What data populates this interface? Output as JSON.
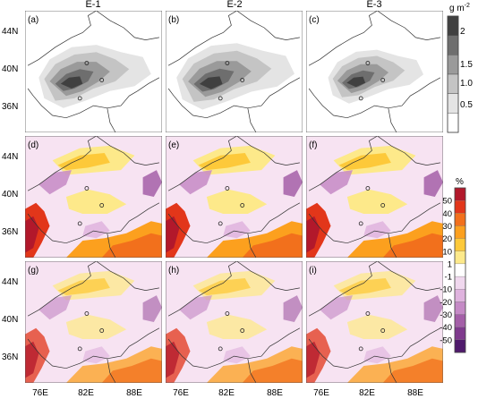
{
  "chart_data": {
    "type": "heatmap",
    "columns": [
      "E-1",
      "E-2",
      "E-3"
    ],
    "lat_ticks": [
      "44N",
      "40N",
      "36N"
    ],
    "lon_ticks": [
      "76E",
      "82E",
      "88E"
    ],
    "panels": [
      {
        "label": "(a)",
        "row": 0,
        "col": 0
      },
      {
        "label": "(b)",
        "row": 0,
        "col": 1
      },
      {
        "label": "(c)",
        "row": 0,
        "col": 2
      },
      {
        "label": "(d)",
        "row": 1,
        "col": 0
      },
      {
        "label": "(e)",
        "row": 1,
        "col": 1
      },
      {
        "label": "(f)",
        "row": 1,
        "col": 2
      },
      {
        "label": "(g)",
        "row": 2,
        "col": 0
      },
      {
        "label": "(h)",
        "row": 2,
        "col": 1
      },
      {
        "label": "(i)",
        "row": 2,
        "col": 2
      }
    ],
    "colorbar_top": {
      "unit": "g m",
      "unit_sup": "-2",
      "tick_labels": [
        "2",
        "1.5",
        "1.0",
        "0.5"
      ],
      "colors": [
        "#404040",
        "#6e6e6e",
        "#9a9a9a",
        "#c4c4c4",
        "#e4e4e4",
        "#ffffff"
      ]
    },
    "colorbar_bottom": {
      "unit": "%",
      "tick_labels": [
        "50",
        "40",
        "30",
        "20",
        "10",
        "1",
        "-1",
        "-10",
        "-20",
        "-30",
        "-40",
        "-50"
      ],
      "colors": [
        "#b2182b",
        "#e2361a",
        "#f2701c",
        "#fca01e",
        "#fdc93a",
        "#fde98a",
        "#ffffff",
        "#f0d8ee",
        "#dfb3de",
        "#c58ac6",
        "#a45fa8",
        "#7f3a8d",
        "#4f1a6c"
      ]
    },
    "colors": {
      "blob_top": [
        "#e4e4e4",
        "#c4c4c4",
        "#9a9a9a",
        "#6e6e6e",
        "#404040"
      ],
      "lower_base": "#f7e3f2",
      "border_line": "#333333"
    }
  }
}
